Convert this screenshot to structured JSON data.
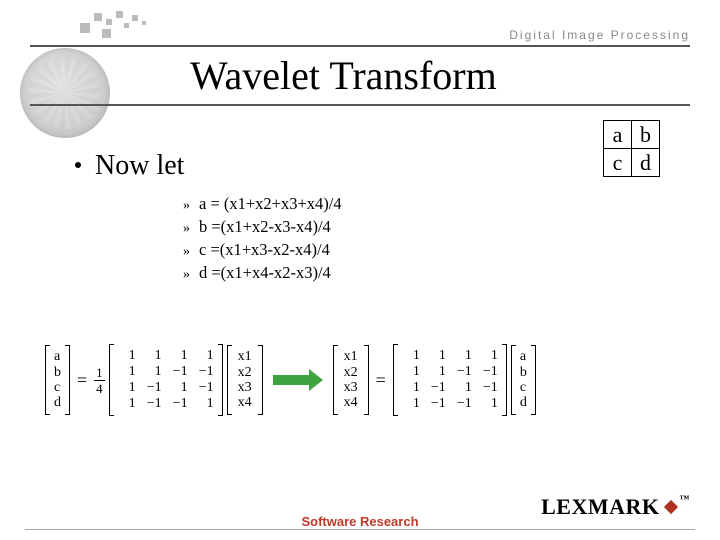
{
  "header": {
    "label": "Digital Image Processing",
    "color": "#888888"
  },
  "title": "Wavelet Transform",
  "nowlet": {
    "bullet": "•",
    "text": "Now let"
  },
  "equations": {
    "doubleangle": "»",
    "items": [
      "a = (x1+x2+x3+x4)/4",
      "b =(x1+x2-x3-x4)/4",
      "c =(x1+x3-x2-x4)/4",
      "d =(x1+x4-x2-x3)/4"
    ]
  },
  "small_matrix": {
    "rows": [
      [
        "a",
        "b"
      ],
      [
        "c",
        "d"
      ]
    ]
  },
  "strip": {
    "abcd": [
      "a",
      "b",
      "c",
      "d"
    ],
    "x": [
      "x1",
      "x2",
      "x3",
      "x4"
    ],
    "frac": {
      "num": "1",
      "den": "4"
    },
    "coeff4": [
      [
        "1",
        "1",
        "1",
        "1"
      ],
      [
        "1",
        "1",
        "−1",
        "−1"
      ],
      [
        "1",
        "−1",
        "1",
        "−1"
      ],
      [
        "1",
        "−1",
        "−1",
        "1"
      ]
    ],
    "arrow_color": "#3fa33f"
  },
  "footer": {
    "text": "Software Research",
    "color": "#c0392b"
  },
  "logo": {
    "text": "LEXMARK",
    "tm": "™",
    "diamond": "#b03020"
  }
}
